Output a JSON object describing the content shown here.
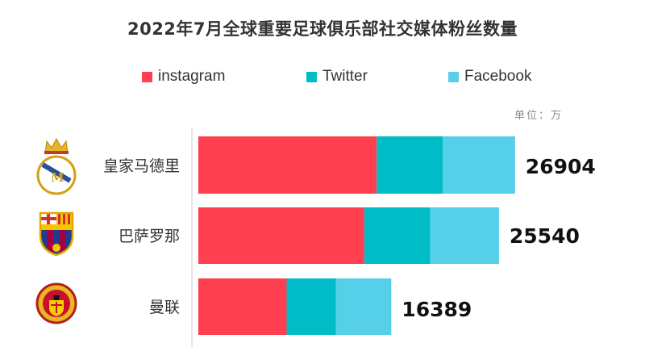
{
  "chart_data": {
    "type": "bar",
    "orientation": "horizontal",
    "stacked": true,
    "title": "2022年7月全球重要足球俱乐部社交媒体粉丝数量",
    "unit_note": "单位：万",
    "categories": [
      "皇家马德里",
      "巴萨罗那",
      "曼联"
    ],
    "series": [
      {
        "name": "instagram",
        "color": "#ff4050",
        "values": [
          15150,
          14100,
          7500
        ]
      },
      {
        "name": "Twitter",
        "color": "#00bcc6",
        "values": [
          5600,
          5600,
          4200
        ]
      },
      {
        "name": "Facebook",
        "color": "#55d0e8",
        "values": [
          6154,
          5840,
          4689
        ]
      }
    ],
    "totals": [
      26904,
      25540,
      16389
    ],
    "xlim": [
      0,
      35000
    ],
    "grid": false,
    "legend": "top"
  }
}
